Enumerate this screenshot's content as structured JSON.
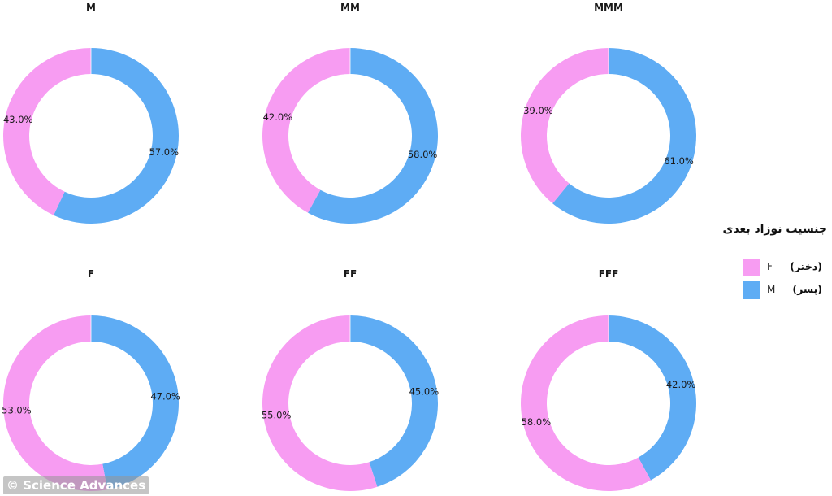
{
  "legend": {
    "title": "جنسیت نوزاد بعدی",
    "items": [
      {
        "code": "F",
        "label": "(دختر)",
        "color": "#f79cf2"
      },
      {
        "code": "M",
        "label": "(پسر)",
        "color": "#5eacf4"
      }
    ]
  },
  "watermark": "© Science Advances",
  "chart_data": [
    {
      "type": "pie",
      "title": "M",
      "categories": [
        "F",
        "M"
      ],
      "values": [
        43.0,
        57.0
      ],
      "labels": [
        "43.0%",
        "57.0%"
      ]
    },
    {
      "type": "pie",
      "title": "MM",
      "categories": [
        "F",
        "M"
      ],
      "values": [
        42.0,
        58.0
      ],
      "labels": [
        "42.0%",
        "58.0%"
      ]
    },
    {
      "type": "pie",
      "title": "MMM",
      "categories": [
        "F",
        "M"
      ],
      "values": [
        39.0,
        61.0
      ],
      "labels": [
        "39.0%",
        "61.0%"
      ]
    },
    {
      "type": "pie",
      "title": "F",
      "categories": [
        "F",
        "M"
      ],
      "values": [
        53.0,
        47.0
      ],
      "labels": [
        "53.0%",
        "47.0%"
      ]
    },
    {
      "type": "pie",
      "title": "FF",
      "categories": [
        "F",
        "M"
      ],
      "values": [
        55.0,
        45.0
      ],
      "labels": [
        "55.0%",
        "45.0%"
      ]
    },
    {
      "type": "pie",
      "title": "FFF",
      "categories": [
        "F",
        "M"
      ],
      "values": [
        58.0,
        42.0
      ],
      "labels": [
        "58.0%",
        "42.0%"
      ]
    }
  ]
}
